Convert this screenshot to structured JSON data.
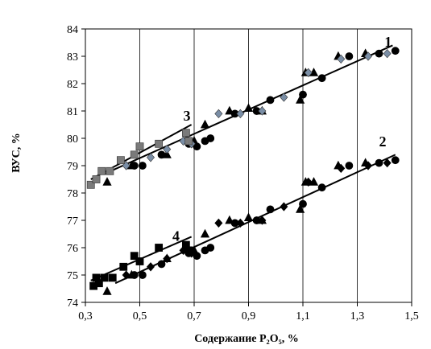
{
  "chart_data": {
    "type": "scatter",
    "title": "",
    "xlabel": "Содержание P₂O₅, %",
    "ylabel": "ВУС, %",
    "xlim": [
      0.3,
      1.5
    ],
    "ylim": [
      74,
      84
    ],
    "x_ticks": [
      0.3,
      0.5,
      0.7,
      0.9,
      1.1,
      1.3,
      1.5
    ],
    "x_tick_labels": [
      "0,3",
      "0,5",
      "0,7",
      "0,9",
      "1,1",
      "1,3",
      "1,5"
    ],
    "y_ticks": [
      74,
      75,
      76,
      77,
      78,
      79,
      80,
      81,
      82,
      83,
      84
    ],
    "y_tick_labels": [
      "74",
      "75",
      "76",
      "77",
      "78",
      "79",
      "80",
      "81",
      "82",
      "83",
      "84"
    ],
    "grid": "vertical",
    "series": [
      {
        "name": "1",
        "label_at": [
          1.4,
          83.35
        ],
        "trend": [
          [
            0.37,
            78.7
          ],
          [
            1.43,
            83.4
          ]
        ],
        "groups": [
          {
            "marker": "circle",
            "color": "#000000",
            "points": [
              [
                0.48,
                79.0
              ],
              [
                0.51,
                79.0
              ],
              [
                0.58,
                79.4
              ],
              [
                0.68,
                79.8
              ],
              [
                0.71,
                79.7
              ],
              [
                0.74,
                79.9
              ],
              [
                0.76,
                80.0
              ],
              [
                0.85,
                80.9
              ],
              [
                0.93,
                81.0
              ],
              [
                0.98,
                81.4
              ],
              [
                1.1,
                81.6
              ],
              [
                1.17,
                82.2
              ],
              [
                1.27,
                83.0
              ],
              [
                1.38,
                83.1
              ],
              [
                1.44,
                83.2
              ]
            ]
          },
          {
            "marker": "triangle",
            "color": "#000000",
            "points": [
              [
                0.38,
                78.4
              ],
              [
                0.47,
                79.0
              ],
              [
                0.6,
                79.4
              ],
              [
                0.7,
                79.9
              ],
              [
                0.74,
                80.5
              ],
              [
                0.83,
                81.0
              ],
              [
                0.9,
                81.1
              ],
              [
                0.95,
                81.0
              ],
              [
                1.09,
                81.4
              ],
              [
                1.11,
                82.4
              ],
              [
                1.14,
                82.4
              ],
              [
                1.23,
                83.0
              ],
              [
                1.33,
                83.1
              ]
            ]
          },
          {
            "marker": "diamond",
            "color": "#7a8ea6",
            "points": [
              [
                0.45,
                79.0
              ],
              [
                0.54,
                79.3
              ],
              [
                0.6,
                79.6
              ],
              [
                0.66,
                79.9
              ],
              [
                0.69,
                79.8
              ],
              [
                0.79,
                80.9
              ],
              [
                0.87,
                80.9
              ],
              [
                0.95,
                81.0
              ],
              [
                1.03,
                81.5
              ],
              [
                1.12,
                82.4
              ],
              [
                1.24,
                82.9
              ],
              [
                1.34,
                83.0
              ],
              [
                1.41,
                83.1
              ]
            ]
          }
        ]
      },
      {
        "name": "2",
        "label_at": [
          1.38,
          79.7
        ],
        "trend": [
          [
            0.41,
            74.7
          ],
          [
            1.44,
            79.4
          ]
        ],
        "groups": [
          {
            "marker": "circle",
            "color": "#000000",
            "points": [
              [
                0.48,
                75.0
              ],
              [
                0.51,
                75.0
              ],
              [
                0.58,
                75.4
              ],
              [
                0.68,
                75.8
              ],
              [
                0.71,
                75.7
              ],
              [
                0.74,
                75.9
              ],
              [
                0.76,
                76.0
              ],
              [
                0.85,
                76.9
              ],
              [
                0.93,
                77.0
              ],
              [
                0.98,
                77.4
              ],
              [
                1.1,
                77.6
              ],
              [
                1.17,
                78.2
              ],
              [
                1.27,
                79.0
              ],
              [
                1.38,
                79.1
              ],
              [
                1.44,
                79.2
              ]
            ]
          },
          {
            "marker": "triangle",
            "color": "#000000",
            "points": [
              [
                0.38,
                74.4
              ],
              [
                0.47,
                75.0
              ],
              [
                0.6,
                75.6
              ],
              [
                0.7,
                75.9
              ],
              [
                0.74,
                76.5
              ],
              [
                0.83,
                77.0
              ],
              [
                0.9,
                77.1
              ],
              [
                0.95,
                77.0
              ],
              [
                1.09,
                77.4
              ],
              [
                1.11,
                78.4
              ],
              [
                1.14,
                78.4
              ],
              [
                1.23,
                79.0
              ],
              [
                1.33,
                79.1
              ]
            ]
          },
          {
            "marker": "diamond",
            "color": "#000000",
            "points": [
              [
                0.45,
                75.0
              ],
              [
                0.54,
                75.3
              ],
              [
                0.6,
                75.6
              ],
              [
                0.66,
                75.9
              ],
              [
                0.69,
                75.8
              ],
              [
                0.79,
                76.9
              ],
              [
                0.87,
                76.9
              ],
              [
                0.95,
                77.0
              ],
              [
                1.03,
                77.5
              ],
              [
                1.12,
                78.4
              ],
              [
                1.24,
                78.9
              ],
              [
                1.34,
                79.0
              ],
              [
                1.41,
                79.1
              ]
            ]
          }
        ]
      },
      {
        "name": "3",
        "label_at": [
          0.66,
          80.65
        ],
        "trend": [
          [
            0.32,
            78.5
          ],
          [
            0.69,
            80.5
          ]
        ],
        "groups": [
          {
            "marker": "square",
            "color": "#7a7a7a",
            "points": [
              [
                0.32,
                78.3
              ],
              [
                0.34,
                78.5
              ],
              [
                0.36,
                78.8
              ],
              [
                0.39,
                78.8
              ],
              [
                0.43,
                79.2
              ],
              [
                0.48,
                79.4
              ],
              [
                0.5,
                79.7
              ],
              [
                0.57,
                79.8
              ],
              [
                0.67,
                80.2
              ],
              [
                0.68,
                79.9
              ]
            ]
          }
        ]
      },
      {
        "name": "4",
        "label_at": [
          0.62,
          76.25
        ],
        "trend": [
          [
            0.32,
            74.8
          ],
          [
            0.69,
            76.4
          ]
        ],
        "groups": [
          {
            "marker": "square",
            "color": "#000000",
            "points": [
              [
                0.33,
                74.6
              ],
              [
                0.34,
                74.9
              ],
              [
                0.35,
                74.7
              ],
              [
                0.37,
                74.9
              ],
              [
                0.4,
                74.9
              ],
              [
                0.44,
                75.3
              ],
              [
                0.48,
                75.7
              ],
              [
                0.5,
                75.5
              ],
              [
                0.57,
                76.0
              ],
              [
                0.67,
                76.1
              ],
              [
                0.68,
                75.9
              ]
            ]
          }
        ]
      }
    ]
  }
}
